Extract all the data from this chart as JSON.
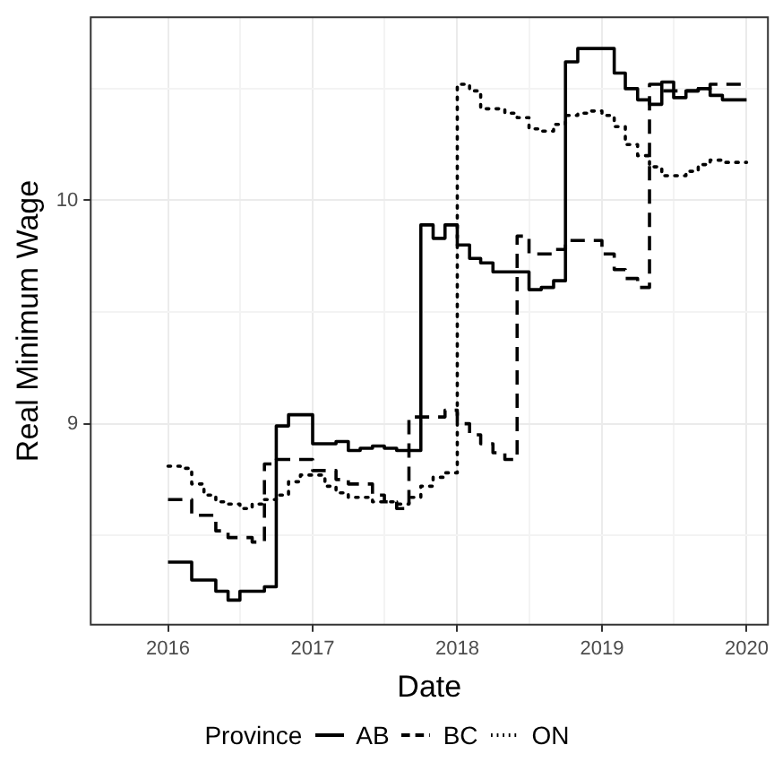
{
  "chart_data": {
    "type": "step",
    "xlabel": "Date",
    "ylabel": "Real Minimum Wage",
    "legend_title": "Province",
    "legend": "bottom",
    "grid": true,
    "marker": "none",
    "x": [
      "2016-01",
      "2016-02",
      "2016-03",
      "2016-04",
      "2016-05",
      "2016-06",
      "2016-07",
      "2016-08",
      "2016-09",
      "2016-10",
      "2016-11",
      "2016-12",
      "2017-01",
      "2017-02",
      "2017-03",
      "2017-04",
      "2017-05",
      "2017-06",
      "2017-07",
      "2017-08",
      "2017-09",
      "2017-10",
      "2017-11",
      "2017-12",
      "2018-01",
      "2018-02",
      "2018-03",
      "2018-04",
      "2018-05",
      "2018-06",
      "2018-07",
      "2018-08",
      "2018-09",
      "2018-10",
      "2018-11",
      "2018-12",
      "2019-01",
      "2019-02",
      "2019-03",
      "2019-04",
      "2019-05",
      "2019-06",
      "2019-07",
      "2019-08",
      "2019-09",
      "2019-10",
      "2019-11",
      "2019-12",
      "2020-01"
    ],
    "xlim": [
      "2015-06-20",
      "2020-02-24"
    ],
    "xticks": [
      {
        "value": "2016",
        "label": "2016"
      },
      {
        "value": "2016-07",
        "label": null
      },
      {
        "value": "2017",
        "label": "2017"
      },
      {
        "value": "2017-07",
        "label": null
      },
      {
        "value": "2018",
        "label": "2018"
      },
      {
        "value": "2018-07",
        "label": null
      },
      {
        "value": "2019",
        "label": "2019"
      },
      {
        "value": "2019-07",
        "label": null
      },
      {
        "value": "2020",
        "label": "2020"
      }
    ],
    "ylim": [
      8.1,
      10.82
    ],
    "yticks": [
      {
        "value": 8.5,
        "label": null
      },
      9,
      {
        "value": 9.5,
        "label": null
      },
      10,
      {
        "value": 10.5,
        "label": null
      }
    ],
    "series": [
      {
        "name": "AB",
        "color": "#000000",
        "line_style": "solid",
        "values": [
          8.38,
          8.38,
          8.3,
          8.3,
          8.25,
          8.21,
          8.25,
          8.25,
          8.27,
          8.99,
          9.04,
          9.04,
          8.91,
          8.91,
          8.92,
          8.88,
          8.89,
          8.9,
          8.89,
          8.88,
          8.88,
          9.89,
          9.83,
          9.89,
          9.8,
          9.74,
          9.72,
          9.68,
          9.68,
          9.68,
          9.6,
          9.61,
          9.64,
          10.62,
          10.68,
          10.68,
          10.68,
          10.57,
          10.5,
          10.45,
          10.43,
          10.53,
          10.46,
          10.49,
          10.5,
          10.47,
          10.45,
          10.45,
          10.45
        ]
      },
      {
        "name": "BC",
        "color": "#000000",
        "line_style": "dashed",
        "values": [
          8.66,
          8.66,
          8.59,
          8.59,
          8.52,
          8.49,
          8.49,
          8.47,
          8.82,
          8.84,
          8.84,
          8.84,
          8.79,
          8.79,
          8.75,
          8.73,
          8.73,
          8.68,
          8.65,
          8.62,
          9.03,
          9.03,
          9.03,
          9.06,
          9.0,
          8.95,
          8.91,
          8.87,
          8.84,
          9.84,
          9.76,
          9.76,
          9.78,
          9.82,
          9.82,
          9.82,
          9.76,
          9.69,
          9.65,
          9.61,
          10.52,
          10.49,
          10.49,
          10.49,
          10.5,
          10.52,
          10.52,
          10.52,
          10.52
        ]
      },
      {
        "name": "ON",
        "color": "#000000",
        "line_style": "dotted",
        "values": [
          8.81,
          8.8,
          8.73,
          8.68,
          8.65,
          8.64,
          8.62,
          8.64,
          8.66,
          8.68,
          8.74,
          8.77,
          8.77,
          8.72,
          8.69,
          8.67,
          8.67,
          8.65,
          8.65,
          8.64,
          8.67,
          8.72,
          8.76,
          8.78,
          10.52,
          10.49,
          10.41,
          10.41,
          10.39,
          10.37,
          10.32,
          10.31,
          10.34,
          10.38,
          10.39,
          10.4,
          10.38,
          10.33,
          10.25,
          10.2,
          10.15,
          10.11,
          10.11,
          10.13,
          10.16,
          10.18,
          10.17,
          10.17,
          10.17
        ]
      }
    ]
  }
}
